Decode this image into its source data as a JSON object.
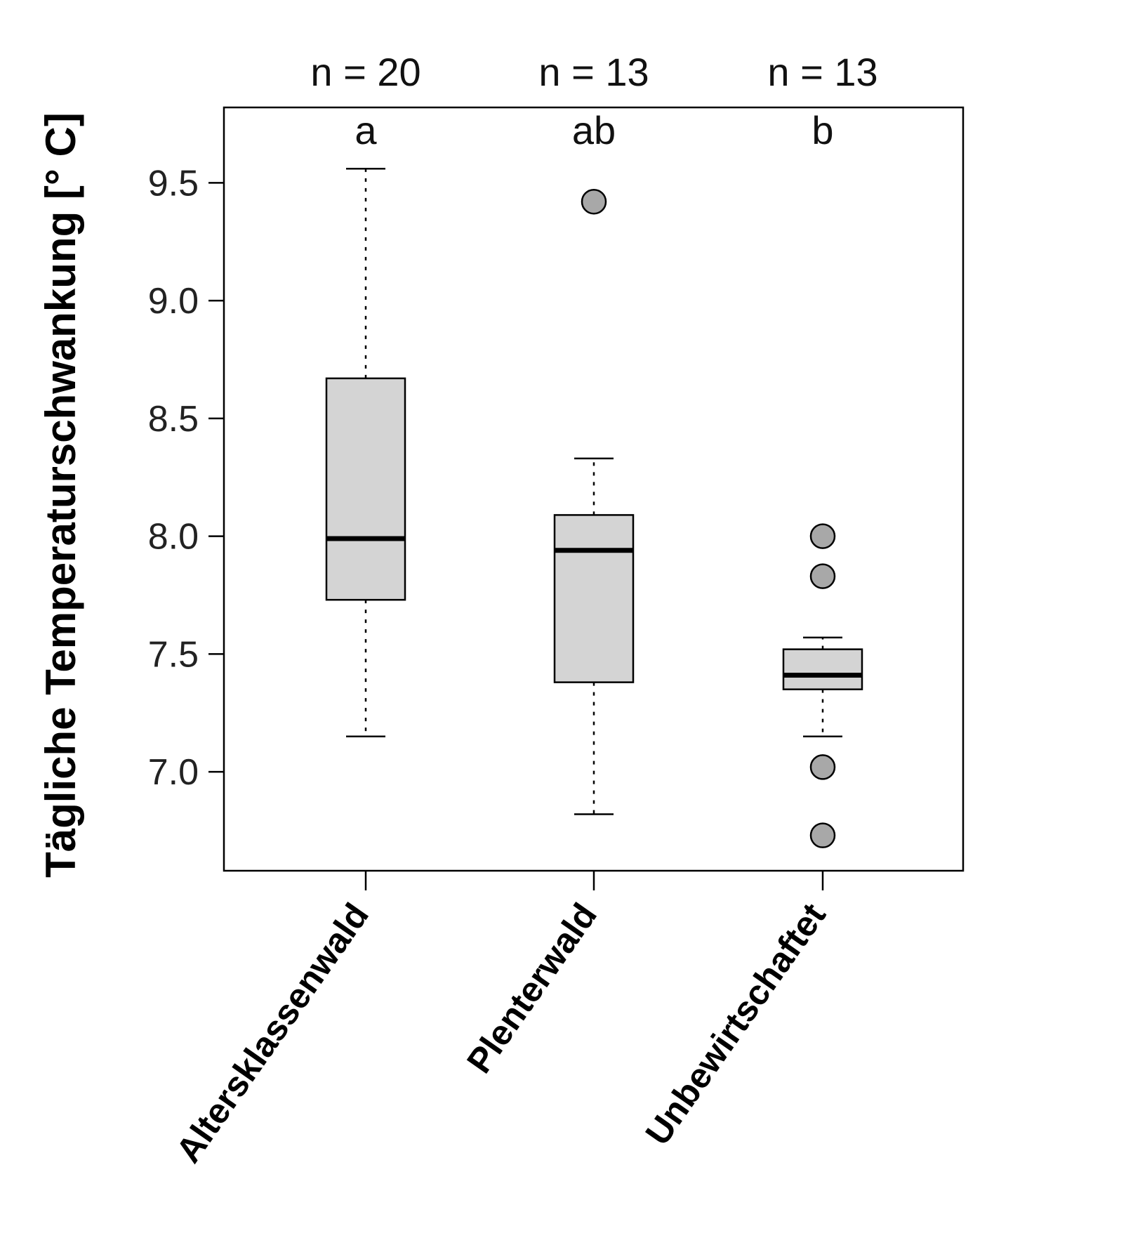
{
  "chart_data": {
    "type": "boxplot",
    "title": "",
    "xlabel": "",
    "ylabel": "Tägliche Temperaturschwankung [° C]",
    "ylim": [
      6.58,
      9.82
    ],
    "yticks": [
      "7.0",
      "7.5",
      "8.0",
      "8.5",
      "9.0",
      "9.5"
    ],
    "grid": false,
    "colors": {
      "box_fill": "#d4d4d4",
      "outlier_fill": "#a8a8a8",
      "stroke": "#000000"
    },
    "groups": [
      {
        "name": "Altersklassenwald",
        "n_label": "n = 20",
        "letter": "a",
        "whisker_low": 7.15,
        "q1": 7.73,
        "median": 7.99,
        "q3": 8.67,
        "whisker_high": 9.56,
        "outliers": []
      },
      {
        "name": "Plenterwald",
        "n_label": "n = 13",
        "letter": "ab",
        "whisker_low": 6.82,
        "q1": 7.38,
        "median": 7.94,
        "q3": 8.09,
        "whisker_high": 8.33,
        "outliers": [
          9.42
        ]
      },
      {
        "name": "Unbewirtschaftet",
        "n_label": "n = 13",
        "letter": "b",
        "whisker_low": 7.15,
        "q1": 7.35,
        "median": 7.41,
        "q3": 7.52,
        "whisker_high": 7.57,
        "outliers": [
          8.0,
          7.83,
          7.02,
          6.73
        ]
      }
    ]
  }
}
